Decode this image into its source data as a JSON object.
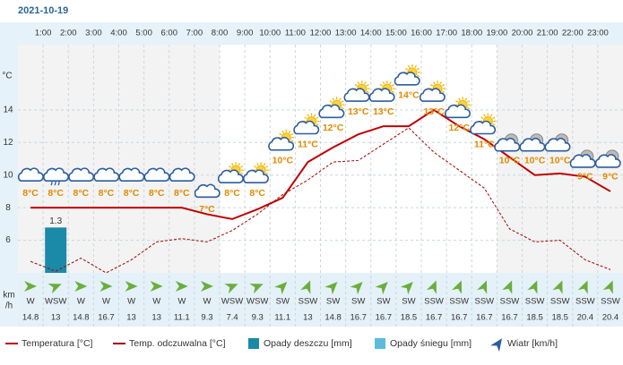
{
  "title": "2021-10-19",
  "chart_data": {
    "type": "line",
    "y_label": "°C",
    "ylim": [
      4,
      18
    ],
    "yticks": [
      6,
      8,
      10,
      12,
      14
    ],
    "grid": true,
    "hour_labels": [
      "1:00",
      "2:00",
      "3:00",
      "4:00",
      "5:00",
      "6:00",
      "7:00",
      "8:00",
      "9:00",
      "10:00",
      "11:00",
      "12:00",
      "13:00",
      "14:00",
      "15:00",
      "16:00",
      "17:00",
      "18:00",
      "19:00",
      "20:00",
      "21:00",
      "22:00",
      "23:00"
    ],
    "series": [
      {
        "name": "Temperatura [°C]",
        "color": "#c00000",
        "style": "solid",
        "values": [
          8,
          8,
          8,
          8,
          8,
          8,
          8,
          7.6,
          7.3,
          7.9,
          8.6,
          10.8,
          11.7,
          12.5,
          13,
          13,
          14,
          13,
          12.2,
          11.1,
          10,
          10.1,
          9.9,
          9
        ]
      },
      {
        "name": "Temp. odczuwalna [°C]",
        "color": "#a00000",
        "style": "dashed",
        "values": [
          4.7,
          4.1,
          4.9,
          4,
          4.8,
          5.9,
          6.1,
          5.9,
          6.6,
          7.6,
          8.8,
          9.7,
          10.8,
          10.9,
          11.9,
          12.9,
          11.4,
          10.3,
          9.2,
          6.7,
          5.9,
          6,
          4.8,
          4.2
        ]
      }
    ],
    "forecast_temps": {
      "values": [
        8,
        8,
        8,
        8,
        8,
        8,
        8,
        7,
        8,
        8,
        10,
        11,
        12,
        13,
        13,
        14,
        13,
        12,
        11,
        10,
        10,
        10,
        9,
        9
      ],
      "value_labels": [
        "8°C",
        "8°C",
        "8°C",
        "8°C",
        "8°C",
        "8°C",
        "8°C",
        "7°C",
        "8°C",
        "8°C",
        "10°C",
        "11°C",
        "12°C",
        "13°C",
        "13°C",
        "14°C",
        "13°C",
        "12°C",
        "11°C",
        "10°C",
        "10°C",
        "10°C",
        "9°C",
        "9°C"
      ]
    },
    "rain": {
      "name": "Opady deszczu [mm]",
      "color": "#1a8aa8",
      "values": [
        0,
        1.3,
        0,
        0,
        0,
        0,
        0,
        0,
        0,
        0,
        0,
        0,
        0,
        0,
        0,
        0,
        0,
        0,
        0,
        0,
        0,
        0,
        0,
        0
      ]
    },
    "snow": {
      "name": "Opady śniegu [mm]",
      "color": "#5bbcdc",
      "values": [
        0,
        0,
        0,
        0,
        0,
        0,
        0,
        0,
        0,
        0,
        0,
        0,
        0,
        0,
        0,
        0,
        0,
        0,
        0,
        0,
        0,
        0,
        0,
        0
      ]
    },
    "wind": {
      "name": "Wiatr [km/h]",
      "color": "#6aae3c",
      "axis_label": [
        "km",
        "/h"
      ],
      "directions": [
        "W",
        "WSW",
        "W",
        "W",
        "W",
        "W",
        "W",
        "W",
        "WSW",
        "WSW",
        "SW",
        "SSW",
        "SW",
        "SW",
        "SW",
        "SW",
        "SSW",
        "SSW",
        "SSW",
        "SSW",
        "SSW",
        "SSW",
        "SSW",
        "SSW"
      ],
      "speeds": [
        14.8,
        13,
        14.8,
        16.7,
        13,
        13,
        11.1,
        9.3,
        7.4,
        9.3,
        11.1,
        13,
        14.8,
        16.7,
        16.7,
        18.5,
        16.7,
        16.7,
        16.7,
        16.7,
        18.5,
        18.5,
        20.4,
        20.4
      ]
    }
  }
}
